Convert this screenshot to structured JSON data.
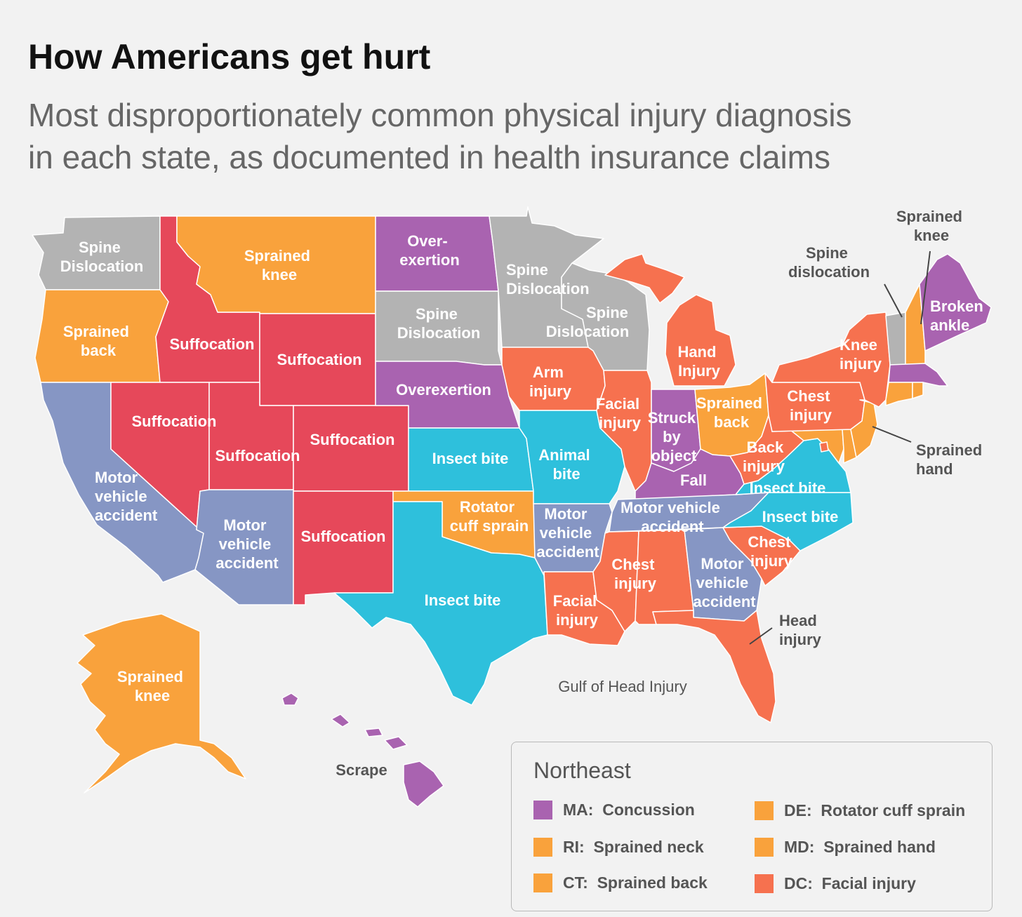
{
  "header": {
    "title": "How Americans get hurt",
    "subtitle_line1": "Most disproportionately common physical injury diagnosis",
    "subtitle_line2": "in each state, as documented in health insurance claims"
  },
  "colors": {
    "gray": "#b3b3b3",
    "orange": "#f9a23c",
    "red": "#e6485a",
    "purple": "#a963b0",
    "blue_gray": "#8696c4",
    "cyan": "#2ec0dc",
    "coral": "#f6714f"
  },
  "state_labels": {
    "wa": [
      "Spine",
      "Dislocation"
    ],
    "or": [
      "Sprained",
      "back"
    ],
    "ca": [
      "Motor",
      "vehicle",
      "accident"
    ],
    "id": [
      "Suffocation"
    ],
    "nv": [
      "Suffocation"
    ],
    "mt": [
      "Sprained",
      "knee"
    ],
    "wy": [
      "Suffocation"
    ],
    "ut": [
      "Suffocation"
    ],
    "co": [
      "Suffocation"
    ],
    "az": [
      "Motor",
      "vehicle",
      "accident"
    ],
    "nm": [
      "Suffocation"
    ],
    "nd": [
      "Over-",
      "exertion"
    ],
    "sd": [
      "Spine",
      "Dislocation"
    ],
    "ne": [
      "Overexertion"
    ],
    "ks": [
      "Insect bite"
    ],
    "ok": [
      "Rotator",
      "cuff sprain"
    ],
    "tx": [
      "Insect bite"
    ],
    "mn": [
      "Spine",
      "Dislocation"
    ],
    "wi": [
      "Spine",
      "Dislocation"
    ],
    "ia": [
      "Arm",
      "injury"
    ],
    "mo": [
      "Animal",
      "bite"
    ],
    "ar": [
      "Motor",
      "vehicle",
      "accident"
    ],
    "la": [
      "Facial",
      "injury"
    ],
    "il": [
      "Facial",
      "injury"
    ],
    "in": [
      "Struck",
      "by",
      "object"
    ],
    "mi": [
      "Hand",
      "Injury"
    ],
    "oh": [
      "Sprained",
      "back"
    ],
    "ky": [
      "Fall"
    ],
    "tn": [
      "Motor vehicle",
      "accident"
    ],
    "ms": [
      "Chest",
      "injury"
    ],
    "ga": [
      "Motor",
      "vehicle",
      "accident"
    ],
    "sc": [
      "Chest",
      "injury"
    ],
    "nc": [
      "Insect bite"
    ],
    "va": [
      "Insect bite"
    ],
    "wv": [
      "Back",
      "injury"
    ],
    "pa": [
      "Chest",
      "injury"
    ],
    "ny": [
      "Knee",
      "injury"
    ],
    "me": [
      "Broken",
      "ankle"
    ],
    "ak": [
      "Sprained",
      "knee"
    ]
  },
  "outside_labels": {
    "hi": "Scrape",
    "vt": [
      "Spine",
      "dislocation"
    ],
    "nh": [
      "Sprained",
      "knee"
    ],
    "nj": [
      "Sprained",
      "hand"
    ],
    "fl": [
      "Head",
      "injury"
    ],
    "gulf": "Gulf of Head Injury"
  },
  "legend": {
    "title": "Northeast",
    "items": [
      {
        "code": "MA:",
        "text": "Concussion",
        "color": "#a963b0"
      },
      {
        "code": "RI:",
        "text": "Sprained neck",
        "color": "#f9a23c"
      },
      {
        "code": "CT:",
        "text": "Sprained back",
        "color": "#f9a23c"
      },
      {
        "code": "DE:",
        "text": "Rotator cuff sprain",
        "color": "#f9a23c"
      },
      {
        "code": "MD:",
        "text": "Sprained hand",
        "color": "#f9a23c"
      },
      {
        "code": "DC:",
        "text": "Facial injury",
        "color": "#f6714f"
      }
    ]
  }
}
